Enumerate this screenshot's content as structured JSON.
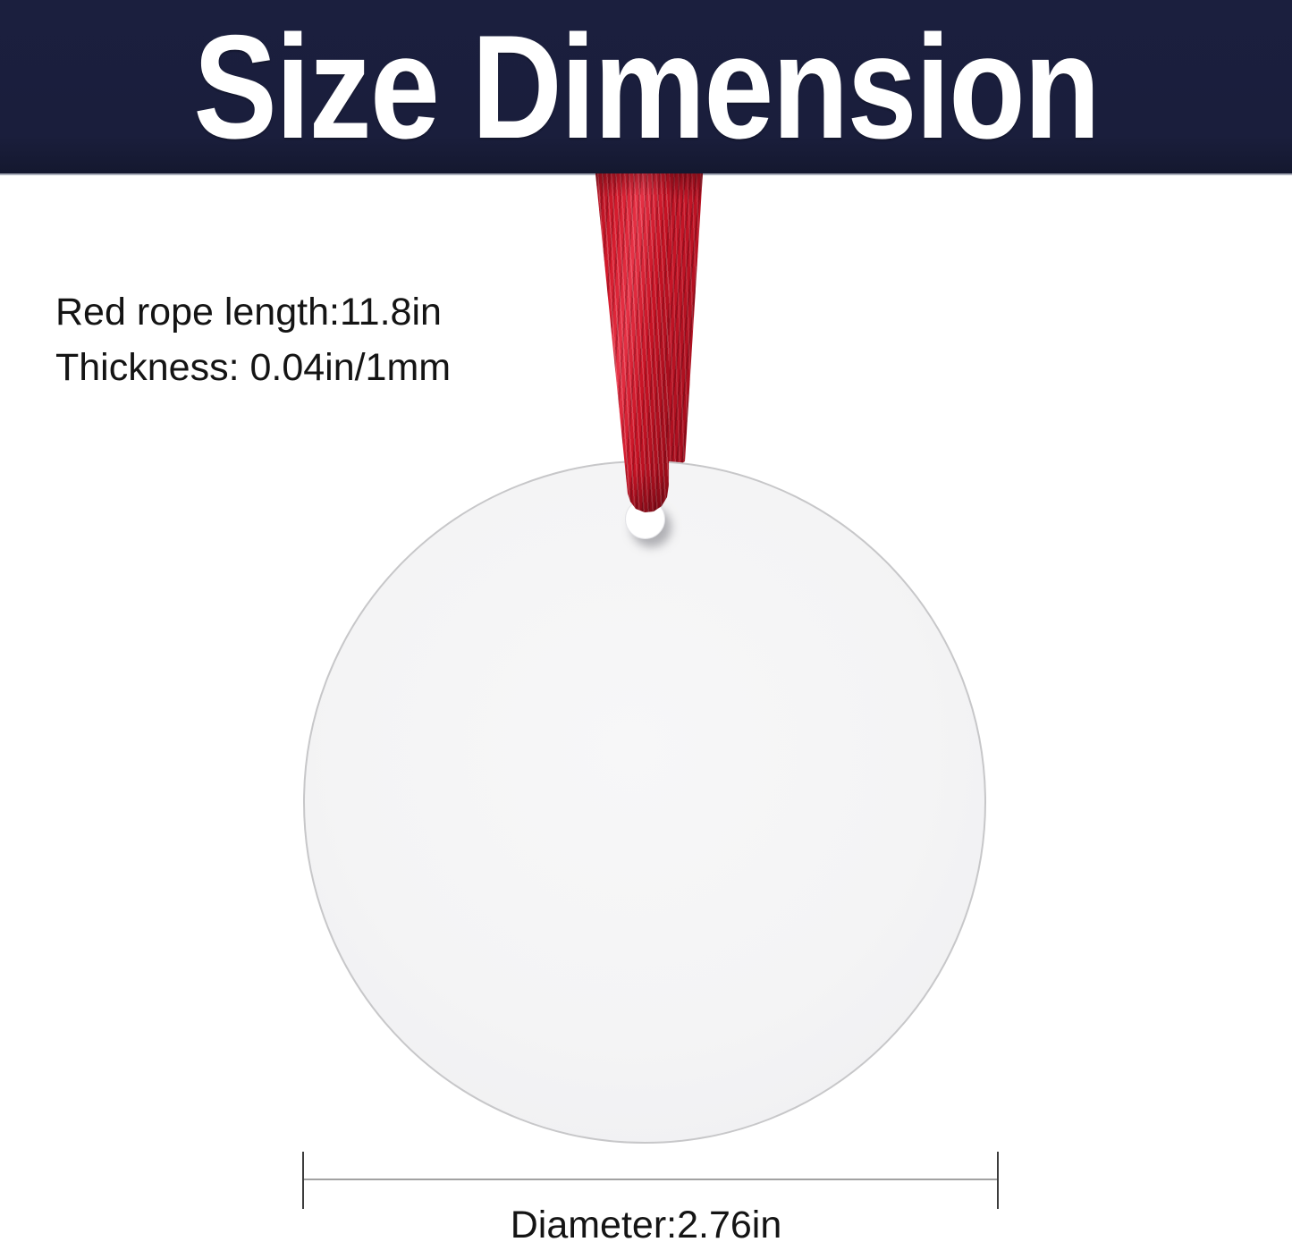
{
  "header": {
    "title": "Size Dimension"
  },
  "annotations": {
    "rope_length": "Red rope length:11.8in",
    "thickness": "Thickness: 0.04in/1mm"
  },
  "dimension": {
    "caption": "Diameter:2.76in"
  },
  "colors": {
    "banner_bg": "#1a1e3c",
    "banner_text": "#ffffff",
    "ribbon_red": "#c81326",
    "ribbon_dark_red": "#8c0b18",
    "disc_fill": "#f4f4f5",
    "disc_edge": "#c7c7c9",
    "hole_fill": "#ffffff",
    "annotation_text": "#141414",
    "dimension_line": "#a2a2a2",
    "dimension_caps": "#3c3c3c"
  }
}
